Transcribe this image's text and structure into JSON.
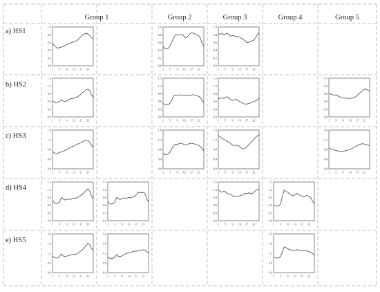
{
  "headers": {
    "g1": "Group 1",
    "g2": "Group 2",
    "g3": "Group 3",
    "g4": "Group 4",
    "g5": "Group 5"
  },
  "rows": {
    "r1": "a) HS1",
    "r2": "b) HS2",
    "r3": "c) HS3",
    "r4": "d) HS4",
    "r5": "e) HS5"
  },
  "colors": {
    "grid": "#bfbfbf",
    "line": "#404040",
    "axis": "#555555"
  },
  "chart_data": [
    {
      "type": "line",
      "id": "HS1-G1a",
      "row": "a) HS1",
      "group": "Group 1",
      "ylim": [
        0,
        1
      ],
      "yticks": [
        "1.0",
        "0.8",
        "0.6",
        "0.4",
        "0.2",
        "0.0"
      ],
      "xticks": [
        "1",
        "5",
        "9",
        "13",
        "17",
        "21"
      ],
      "x": [
        1,
        2,
        3,
        4,
        5,
        6,
        7,
        8,
        9,
        10,
        11,
        12,
        13,
        14,
        15,
        16,
        17,
        18,
        19,
        20,
        21,
        22,
        23,
        24
      ],
      "values": [
        0.58,
        0.52,
        0.48,
        0.45,
        0.47,
        0.48,
        0.5,
        0.52,
        0.55,
        0.56,
        0.58,
        0.6,
        0.62,
        0.63,
        0.66,
        0.7,
        0.75,
        0.8,
        0.82,
        0.84,
        0.82,
        0.78,
        0.72,
        0.7
      ]
    },
    {
      "type": "line",
      "id": "HS1-G2",
      "row": "a) HS1",
      "group": "Group 2",
      "ylim": [
        0,
        1
      ],
      "yticks": [
        "1.0",
        "0.8",
        "0.6",
        "0.4",
        "0.2",
        "0.0"
      ],
      "xticks": [
        "1",
        "5",
        "9",
        "13",
        "17",
        "21"
      ],
      "x": [
        1,
        2,
        3,
        4,
        5,
        6,
        7,
        8,
        9,
        10,
        11,
        12,
        13,
        14,
        15,
        16,
        17,
        18,
        19,
        20,
        21,
        22,
        23,
        24
      ],
      "values": [
        0.5,
        0.44,
        0.43,
        0.45,
        0.52,
        0.62,
        0.72,
        0.8,
        0.8,
        0.79,
        0.8,
        0.8,
        0.75,
        0.72,
        0.76,
        0.82,
        0.85,
        0.84,
        0.82,
        0.8,
        0.78,
        0.72,
        0.58,
        0.5
      ]
    },
    {
      "type": "line",
      "id": "HS1-G3",
      "row": "a) HS1",
      "group": "Group 3",
      "ylim": [
        0,
        1
      ],
      "yticks": [
        "1.0",
        "0.8",
        "0.6",
        "0.4",
        "0.2",
        "0.0"
      ],
      "xticks": [
        "1",
        "5",
        "9",
        "13",
        "17",
        "21"
      ],
      "x": [
        1,
        2,
        3,
        4,
        5,
        6,
        7,
        8,
        9,
        10,
        11,
        12,
        13,
        14,
        15,
        16,
        17,
        18,
        19,
        20,
        21,
        22,
        23,
        24
      ],
      "values": [
        0.8,
        0.82,
        0.83,
        0.8,
        0.82,
        0.84,
        0.8,
        0.76,
        0.78,
        0.77,
        0.74,
        0.76,
        0.74,
        0.7,
        0.68,
        0.65,
        0.6,
        0.6,
        0.62,
        0.64,
        0.66,
        0.72,
        0.8,
        0.85
      ]
    },
    {
      "type": "line",
      "id": "HS2-G1a",
      "row": "b) HS2",
      "group": "Group 1",
      "ylim": [
        0,
        1.5
      ],
      "yticks": [
        "1.5",
        "1.2",
        "0.9",
        "0.6",
        "0.3",
        "0.0"
      ],
      "xticks": [
        "1",
        "5",
        "9",
        "13",
        "17",
        "21"
      ],
      "x": [
        1,
        2,
        3,
        4,
        5,
        6,
        7,
        8,
        9,
        10,
        11,
        12,
        13,
        14,
        15,
        16,
        17,
        18,
        19,
        20,
        21,
        22,
        23,
        24
      ],
      "values": [
        0.62,
        0.58,
        0.55,
        0.56,
        0.6,
        0.66,
        0.62,
        0.6,
        0.62,
        0.66,
        0.7,
        0.72,
        0.72,
        0.74,
        0.78,
        0.82,
        0.88,
        0.95,
        1.0,
        1.05,
        1.08,
        1.02,
        0.85,
        0.75
      ]
    },
    {
      "type": "line",
      "id": "HS2-G2",
      "row": "b) HS2",
      "group": "Group 2",
      "ylim": [
        0,
        1.5
      ],
      "yticks": [
        "1.5",
        "1.2",
        "0.9",
        "0.6",
        "0.3",
        "0.0"
      ],
      "xticks": [
        "1",
        "5",
        "9",
        "13",
        "17",
        "21"
      ],
      "x": [
        1,
        2,
        3,
        4,
        5,
        6,
        7,
        8,
        9,
        10,
        11,
        12,
        13,
        14,
        15,
        16,
        17,
        18,
        19,
        20,
        21,
        22,
        23,
        24
      ],
      "values": [
        0.52,
        0.48,
        0.46,
        0.48,
        0.54,
        0.66,
        0.82,
        0.84,
        0.83,
        0.84,
        0.86,
        0.84,
        0.82,
        0.82,
        0.85,
        0.84,
        0.85,
        0.86,
        0.85,
        0.82,
        0.8,
        0.76,
        0.65,
        0.55
      ]
    },
    {
      "type": "line",
      "id": "HS2-G3",
      "row": "b) HS2",
      "group": "Group 3",
      "ylim": [
        0,
        1.5
      ],
      "yticks": [
        "1.5",
        "1.2",
        "0.9",
        "0.6",
        "0.3",
        "0.0"
      ],
      "xticks": [
        "1",
        "5",
        "9",
        "13",
        "17",
        "21"
      ],
      "x": [
        1,
        2,
        3,
        4,
        5,
        6,
        7,
        8,
        9,
        10,
        11,
        12,
        13,
        14,
        15,
        16,
        17,
        18,
        19,
        20,
        21,
        22,
        23,
        24
      ],
      "values": [
        0.7,
        0.72,
        0.74,
        0.72,
        0.76,
        0.78,
        0.74,
        0.66,
        0.64,
        0.66,
        0.68,
        0.64,
        0.6,
        0.56,
        0.52,
        0.5,
        0.5,
        0.52,
        0.54,
        0.56,
        0.6,
        0.62,
        0.66,
        0.74
      ]
    },
    {
      "type": "line",
      "id": "HS2-G5",
      "row": "b) HS2",
      "group": "Group 5",
      "ylim": [
        0,
        1.5
      ],
      "yticks": [
        "1.5",
        "1.2",
        "0.9",
        "0.6",
        "0.3",
        "0.0"
      ],
      "xticks": [
        "1",
        "5",
        "9",
        "13",
        "17",
        "21"
      ],
      "x": [
        1,
        2,
        3,
        4,
        5,
        6,
        7,
        8,
        9,
        10,
        11,
        12,
        13,
        14,
        15,
        16,
        17,
        18,
        19,
        20,
        21,
        22,
        23,
        24
      ],
      "values": [
        0.92,
        0.88,
        0.86,
        0.84,
        0.86,
        0.82,
        0.78,
        0.76,
        0.74,
        0.74,
        0.72,
        0.72,
        0.72,
        0.72,
        0.74,
        0.78,
        0.84,
        0.9,
        0.96,
        1.02,
        1.06,
        1.08,
        1.04,
        1.0
      ]
    },
    {
      "type": "line",
      "id": "HS3-G1a",
      "row": "c) HS3",
      "group": "Group 1",
      "ylim": [
        0,
        1.6
      ],
      "yticks": [
        "1.6",
        "1.2",
        "0.8",
        "0.4",
        "0.0"
      ],
      "xticks": [
        "1",
        "5",
        "9",
        "13",
        "17",
        "21"
      ],
      "x": [
        1,
        2,
        3,
        4,
        5,
        6,
        7,
        8,
        9,
        10,
        11,
        12,
        13,
        14,
        15,
        16,
        17,
        18,
        19,
        20,
        21,
        22,
        23,
        24
      ],
      "values": [
        0.72,
        0.66,
        0.62,
        0.64,
        0.68,
        0.7,
        0.72,
        0.76,
        0.8,
        0.84,
        0.88,
        0.92,
        0.94,
        0.98,
        1.02,
        1.04,
        1.08,
        1.12,
        1.16,
        1.18,
        1.16,
        1.1,
        0.98,
        0.9
      ]
    },
    {
      "type": "line",
      "id": "HS3-G2",
      "row": "c) HS3",
      "group": "Group 2",
      "ylim": [
        0,
        1.6
      ],
      "yticks": [
        "1.6",
        "1.2",
        "0.8",
        "0.4",
        "0.0"
      ],
      "xticks": [
        "1",
        "5",
        "9",
        "13",
        "17",
        "21"
      ],
      "x": [
        1,
        2,
        3,
        4,
        5,
        6,
        7,
        8,
        9,
        10,
        11,
        12,
        13,
        14,
        15,
        16,
        17,
        18,
        19,
        20,
        21,
        22,
        23,
        24
      ],
      "values": [
        0.64,
        0.6,
        0.58,
        0.62,
        0.7,
        0.84,
        0.96,
        1.02,
        1.0,
        1.04,
        1.06,
        1.04,
        1.0,
        0.98,
        1.02,
        1.04,
        1.06,
        1.04,
        1.02,
        1.0,
        0.98,
        0.92,
        0.84,
        0.74
      ]
    },
    {
      "type": "line",
      "id": "HS3-G3",
      "row": "c) HS3",
      "group": "Group 3",
      "ylim": [
        0,
        1.6
      ],
      "yticks": [
        "1.6",
        "1.2",
        "0.8",
        "0.4",
        "0.0"
      ],
      "xticks": [
        "1",
        "5",
        "9",
        "13",
        "17",
        "21"
      ],
      "x": [
        1,
        2,
        3,
        4,
        5,
        6,
        7,
        8,
        9,
        10,
        11,
        12,
        13,
        14,
        15,
        16,
        17,
        18,
        19,
        20,
        21,
        22,
        23,
        24
      ],
      "values": [
        1.38,
        1.32,
        1.26,
        1.22,
        1.18,
        1.14,
        1.1,
        1.04,
        0.98,
        0.96,
        0.98,
        0.96,
        0.92,
        0.86,
        0.82,
        0.84,
        0.9,
        0.98,
        1.06,
        1.14,
        1.22,
        1.3,
        1.36,
        1.4
      ]
    },
    {
      "type": "line",
      "id": "HS3-G5",
      "row": "c) HS3",
      "group": "Group 5",
      "ylim": [
        0,
        1.6
      ],
      "yticks": [
        "1.6",
        "1.2",
        "0.8",
        "0.4",
        "0.0"
      ],
      "xticks": [
        "1",
        "5",
        "9",
        "13",
        "17",
        "21"
      ],
      "x": [
        1,
        2,
        3,
        4,
        5,
        6,
        7,
        8,
        9,
        10,
        11,
        12,
        13,
        14,
        15,
        16,
        17,
        18,
        19,
        20,
        21,
        22,
        23,
        24
      ],
      "values": [
        0.86,
        0.82,
        0.8,
        0.78,
        0.76,
        0.74,
        0.72,
        0.72,
        0.72,
        0.74,
        0.76,
        0.78,
        0.8,
        0.84,
        0.88,
        0.92,
        0.96,
        1.0,
        1.02,
        1.04,
        1.02,
        1.0,
        0.98,
        0.96
      ]
    },
    {
      "type": "line",
      "id": "HS4-G1a",
      "row": "d) HS4",
      "group": "Group 1",
      "ylim": [
        0,
        1.5
      ],
      "yticks": [
        "1.5",
        "1.2",
        "0.9",
        "0.6",
        "0.3",
        "0.0"
      ],
      "xticks": [
        "1",
        "5",
        "9",
        "13",
        "17",
        "21"
      ],
      "x": [
        1,
        2,
        3,
        4,
        5,
        6,
        7,
        8,
        9,
        10,
        11,
        12,
        13,
        14,
        15,
        16,
        17,
        18,
        19,
        20,
        21,
        22,
        23,
        24
      ],
      "values": [
        0.78,
        0.7,
        0.66,
        0.68,
        0.72,
        0.9,
        0.84,
        0.8,
        0.82,
        0.84,
        0.82,
        0.86,
        0.88,
        0.86,
        0.9,
        0.94,
        0.98,
        1.04,
        1.1,
        1.18,
        1.24,
        1.14,
        0.96,
        0.84
      ]
    },
    {
      "type": "line",
      "id": "HS4-G1b",
      "row": "d) HS4",
      "group": "Group 1",
      "ylim": [
        0,
        1.5
      ],
      "yticks": [
        "1.5",
        "1.2",
        "0.9",
        "0.6",
        "0.3",
        "0.0"
      ],
      "xticks": [
        "1",
        "5",
        "9",
        "13",
        "17",
        "21"
      ],
      "x": [
        1,
        2,
        3,
        4,
        5,
        6,
        7,
        8,
        9,
        10,
        11,
        12,
        13,
        14,
        15,
        16,
        17,
        18,
        19,
        20,
        21,
        22,
        23,
        24
      ],
      "values": [
        0.74,
        0.66,
        0.64,
        0.66,
        0.72,
        0.9,
        0.86,
        0.82,
        0.86,
        0.88,
        0.86,
        0.88,
        0.9,
        0.88,
        0.92,
        0.94,
        1.0,
        1.08,
        1.1,
        1.08,
        1.1,
        1.06,
        0.84,
        0.72
      ]
    },
    {
      "type": "line",
      "id": "HS4-G3",
      "row": "d) HS4",
      "group": "Group 3",
      "ylim": [
        0,
        1.5
      ],
      "yticks": [
        "1.5",
        "1.2",
        "0.9",
        "0.6",
        "0.3",
        "0.0"
      ],
      "xticks": [
        "1",
        "5",
        "9",
        "13",
        "17",
        "21"
      ],
      "x": [
        1,
        2,
        3,
        4,
        5,
        6,
        7,
        8,
        9,
        10,
        11,
        12,
        13,
        14,
        15,
        16,
        17,
        18,
        19,
        20,
        21,
        22,
        23,
        24
      ],
      "values": [
        1.18,
        1.14,
        1.1,
        1.14,
        1.12,
        1.06,
        1.02,
        1.04,
        0.96,
        0.94,
        0.96,
        0.94,
        0.96,
        0.98,
        1.02,
        1.06,
        1.04,
        1.08,
        1.06,
        1.04,
        1.1,
        1.16,
        1.2,
        1.24
      ]
    },
    {
      "type": "line",
      "id": "HS4-G4",
      "row": "d) HS4",
      "group": "Group 4",
      "ylim": [
        0,
        1.5
      ],
      "yticks": [
        "1.5",
        "1.2",
        "0.9",
        "0.6",
        "0.3",
        "0.0"
      ],
      "xticks": [
        "1",
        "5",
        "9",
        "13",
        "17",
        "21"
      ],
      "x": [
        1,
        2,
        3,
        4,
        5,
        6,
        7,
        8,
        9,
        10,
        11,
        12,
        13,
        14,
        15,
        16,
        17,
        18,
        19,
        20,
        21,
        22,
        23,
        24
      ],
      "values": [
        0.62,
        0.58,
        0.56,
        0.58,
        0.66,
        0.96,
        1.2,
        1.14,
        1.1,
        1.04,
        1.0,
        0.96,
        1.0,
        1.06,
        1.02,
        0.98,
        0.94,
        0.92,
        0.96,
        0.98,
        0.94,
        0.88,
        0.76,
        0.66
      ]
    },
    {
      "type": "line",
      "id": "HS5-G1a",
      "row": "e) HS5",
      "group": "Group 1",
      "ylim": [
        0,
        2.4
      ],
      "yticks": [
        "2.4",
        "1.8",
        "1.2",
        "0.6",
        "0.0"
      ],
      "xticks": [
        "1",
        "5",
        "9",
        "13",
        "17",
        "21"
      ],
      "x": [
        1,
        2,
        3,
        4,
        5,
        6,
        7,
        8,
        9,
        10,
        11,
        12,
        13,
        14,
        15,
        16,
        17,
        18,
        19,
        20,
        21,
        22,
        23,
        24
      ],
      "values": [
        1.02,
        0.94,
        0.9,
        0.92,
        1.0,
        1.16,
        1.04,
        0.98,
        1.02,
        1.06,
        1.08,
        1.12,
        1.14,
        1.12,
        1.18,
        1.26,
        1.34,
        1.42,
        1.56,
        1.68,
        1.82,
        1.74,
        1.5,
        1.36
      ]
    },
    {
      "type": "line",
      "id": "HS5-G1b",
      "row": "e) HS5",
      "group": "Group 1",
      "ylim": [
        0,
        2.4
      ],
      "yticks": [
        "2.4",
        "1.8",
        "1.2",
        "0.6",
        "0.0"
      ],
      "xticks": [
        "1",
        "5",
        "9",
        "13",
        "17",
        "21"
      ],
      "x": [
        1,
        2,
        3,
        4,
        5,
        6,
        7,
        8,
        9,
        10,
        11,
        12,
        13,
        14,
        15,
        16,
        17,
        18,
        19,
        20,
        21,
        22,
        23,
        24
      ],
      "values": [
        0.96,
        0.9,
        0.86,
        0.88,
        0.96,
        1.12,
        1.0,
        0.98,
        1.04,
        1.1,
        1.16,
        1.2,
        1.24,
        1.26,
        1.3,
        1.34,
        1.32,
        1.36,
        1.4,
        1.38,
        1.42,
        1.4,
        1.3,
        1.2
      ]
    },
    {
      "type": "line",
      "id": "HS5-G4",
      "row": "e) HS5",
      "group": "Group 4",
      "ylim": [
        0,
        2.4
      ],
      "yticks": [
        "2.4",
        "1.8",
        "1.2",
        "0.6",
        "0.0"
      ],
      "xticks": [
        "1",
        "5",
        "9",
        "13",
        "17",
        "21"
      ],
      "x": [
        1,
        2,
        3,
        4,
        5,
        6,
        7,
        8,
        9,
        10,
        11,
        12,
        13,
        14,
        15,
        16,
        17,
        18,
        19,
        20,
        21,
        22,
        23,
        24
      ],
      "values": [
        0.96,
        0.92,
        0.9,
        0.92,
        1.02,
        1.3,
        1.6,
        1.54,
        1.48,
        1.42,
        1.4,
        1.36,
        1.38,
        1.42,
        1.4,
        1.38,
        1.36,
        1.4,
        1.36,
        1.34,
        1.3,
        1.26,
        1.18,
        1.06
      ]
    }
  ]
}
